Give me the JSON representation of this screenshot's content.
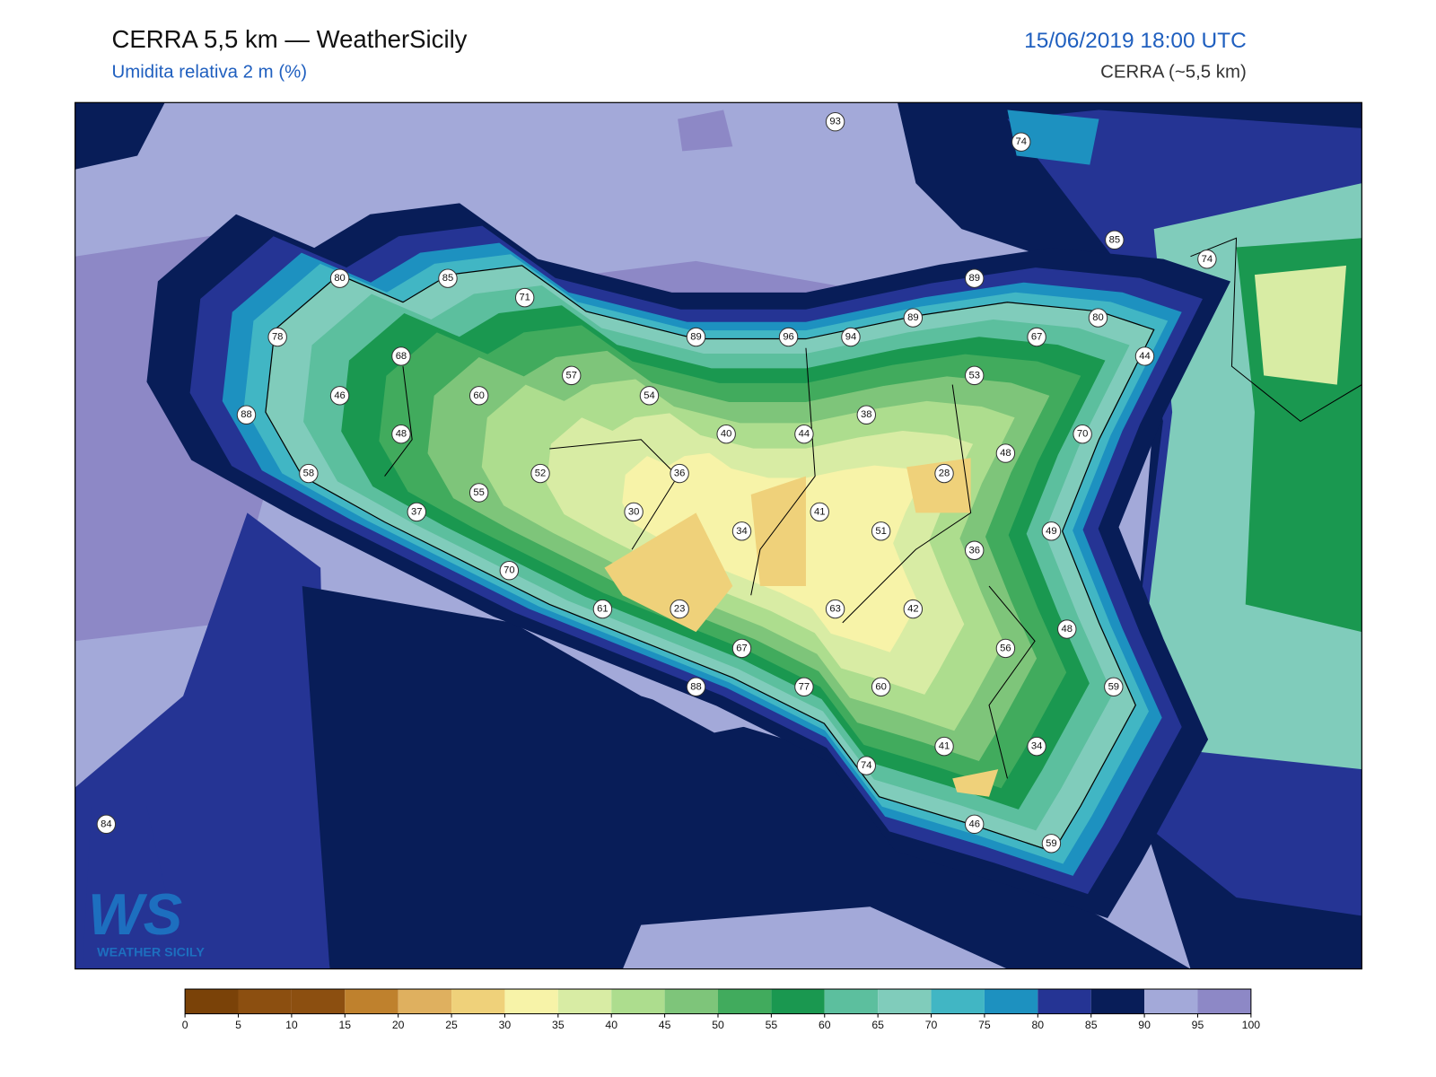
{
  "header": {
    "title": "CERRA 5,5 km — WeatherSicily",
    "subtitle": "Umidita relativa 2 m (%)",
    "date": "15/06/2019 18:00 UTC",
    "model": "CERRA (~5,5 km)"
  },
  "stations": {
    "values": [
      93,
      74,
      85,
      74,
      80,
      85,
      71,
      89,
      89,
      80,
      78,
      89,
      96,
      94,
      67,
      68,
      44,
      57,
      53,
      46,
      60,
      54,
      38,
      88,
      48,
      40,
      44,
      70,
      48,
      36,
      52,
      58,
      28,
      55,
      37,
      30,
      41,
      34,
      51,
      49,
      36,
      70,
      61,
      23,
      63,
      42,
      48,
      67,
      56,
      88,
      77,
      60,
      59,
      41,
      34,
      74,
      46,
      59,
      84
    ]
  },
  "colorbar": {
    "ticks": [
      0,
      5,
      10,
      15,
      20,
      25,
      30,
      35,
      40,
      45,
      50,
      55,
      60,
      65,
      70,
      75,
      80,
      85,
      90,
      95,
      100
    ],
    "colors": [
      "#7a4208",
      "#8c4f10",
      "#8c4f10",
      "#bf812d",
      "#dfb05f",
      "#efd17a",
      "#f7f3a8",
      "#d8eca4",
      "#addd8e",
      "#7ec57a",
      "#41ab5d",
      "#1a9850",
      "#5cbf9e",
      "#80ccbb",
      "#41b6c4",
      "#1d91c0",
      "#253494",
      "#081d58",
      "#a3a9d9",
      "#8d88c6"
    ]
  },
  "logo": {
    "text": "WS",
    "subtext": "WEATHER SICILY"
  }
}
